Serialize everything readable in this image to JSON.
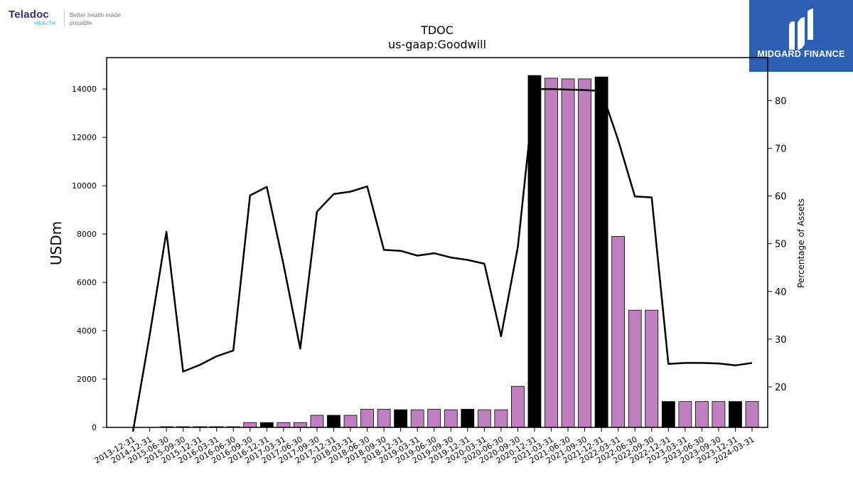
{
  "brand": {
    "name": "Teladoc",
    "sub": "HEALTH",
    "tagline": "Better health made possible"
  },
  "watermark": {
    "text": "MIDGARD FINANCE",
    "bg_color": "#2d5fb3"
  },
  "chart_data": {
    "type": "bar",
    "title": "TDOC",
    "subtitle": "us-gaap:Goodwill",
    "ylabel": "USDm",
    "y2label": "Percentage of Assets",
    "ylim": [
      0,
      15300
    ],
    "y2lim": [
      11.5,
      89
    ],
    "yticks": [
      0,
      2000,
      4000,
      6000,
      8000,
      10000,
      12000,
      14000
    ],
    "y2ticks": [
      20,
      30,
      40,
      50,
      60,
      70,
      80
    ],
    "categories": [
      "2013-12-31",
      "2014-12-31",
      "2015-06-30",
      "2015-09-30",
      "2015-12-31",
      "2016-03-31",
      "2016-06-30",
      "2016-09-30",
      "2016-12-31",
      "2017-03-31",
      "2017-06-30",
      "2017-09-30",
      "2017-12-31",
      "2018-03-31",
      "2018-06-30",
      "2018-09-30",
      "2018-12-31",
      "2019-03-31",
      "2019-06-30",
      "2019-09-30",
      "2019-12-31",
      "2020-03-31",
      "2020-06-30",
      "2020-09-30",
      "2020-12-31",
      "2021-03-31",
      "2021-06-30",
      "2021-09-30",
      "2021-12-31",
      "2022-03-31",
      "2022-06-30",
      "2022-09-30",
      "2022-12-31",
      "2023-03-31",
      "2023-06-30",
      "2023-09-30",
      "2023-12-31",
      "2024-03-31"
    ],
    "series": [
      {
        "kind": "bar",
        "values": [
          0,
          0,
          30,
          30,
          30,
          30,
          30,
          200,
          200,
          200,
          200,
          500,
          500,
          500,
          750,
          750,
          730,
          730,
          750,
          730,
          750,
          730,
          730,
          1700,
          14560,
          14450,
          14420,
          14420,
          14500,
          7900,
          4850,
          4850,
          1070,
          1070,
          1070,
          1070,
          1070,
          1070
        ],
        "is_year_end": [
          true,
          true,
          false,
          false,
          true,
          false,
          false,
          false,
          true,
          false,
          false,
          false,
          true,
          false,
          false,
          false,
          true,
          false,
          false,
          false,
          true,
          false,
          false,
          false,
          true,
          false,
          false,
          false,
          true,
          false,
          false,
          false,
          true,
          false,
          false,
          false,
          true,
          false
        ],
        "color_quarter": "#bf7fbf",
        "color_year_end": "#000000"
      },
      {
        "kind": "line",
        "axis": "right",
        "color": "#000000",
        "values": [
          10.6,
          30.8,
          52.5,
          23.2,
          24.6,
          26.4,
          27.6,
          60.1,
          61.9,
          45.6,
          28.0,
          56.7,
          60.4,
          60.9,
          62.0,
          48.7,
          48.5,
          47.5,
          48.0,
          47.1,
          46.6,
          45.8,
          30.6,
          49.2,
          82.4,
          82.4,
          82.3,
          82.2,
          82.0,
          71.7,
          59.9,
          59.7,
          24.8,
          25.0,
          25.0,
          24.9,
          24.5,
          25.0
        ]
      }
    ]
  }
}
